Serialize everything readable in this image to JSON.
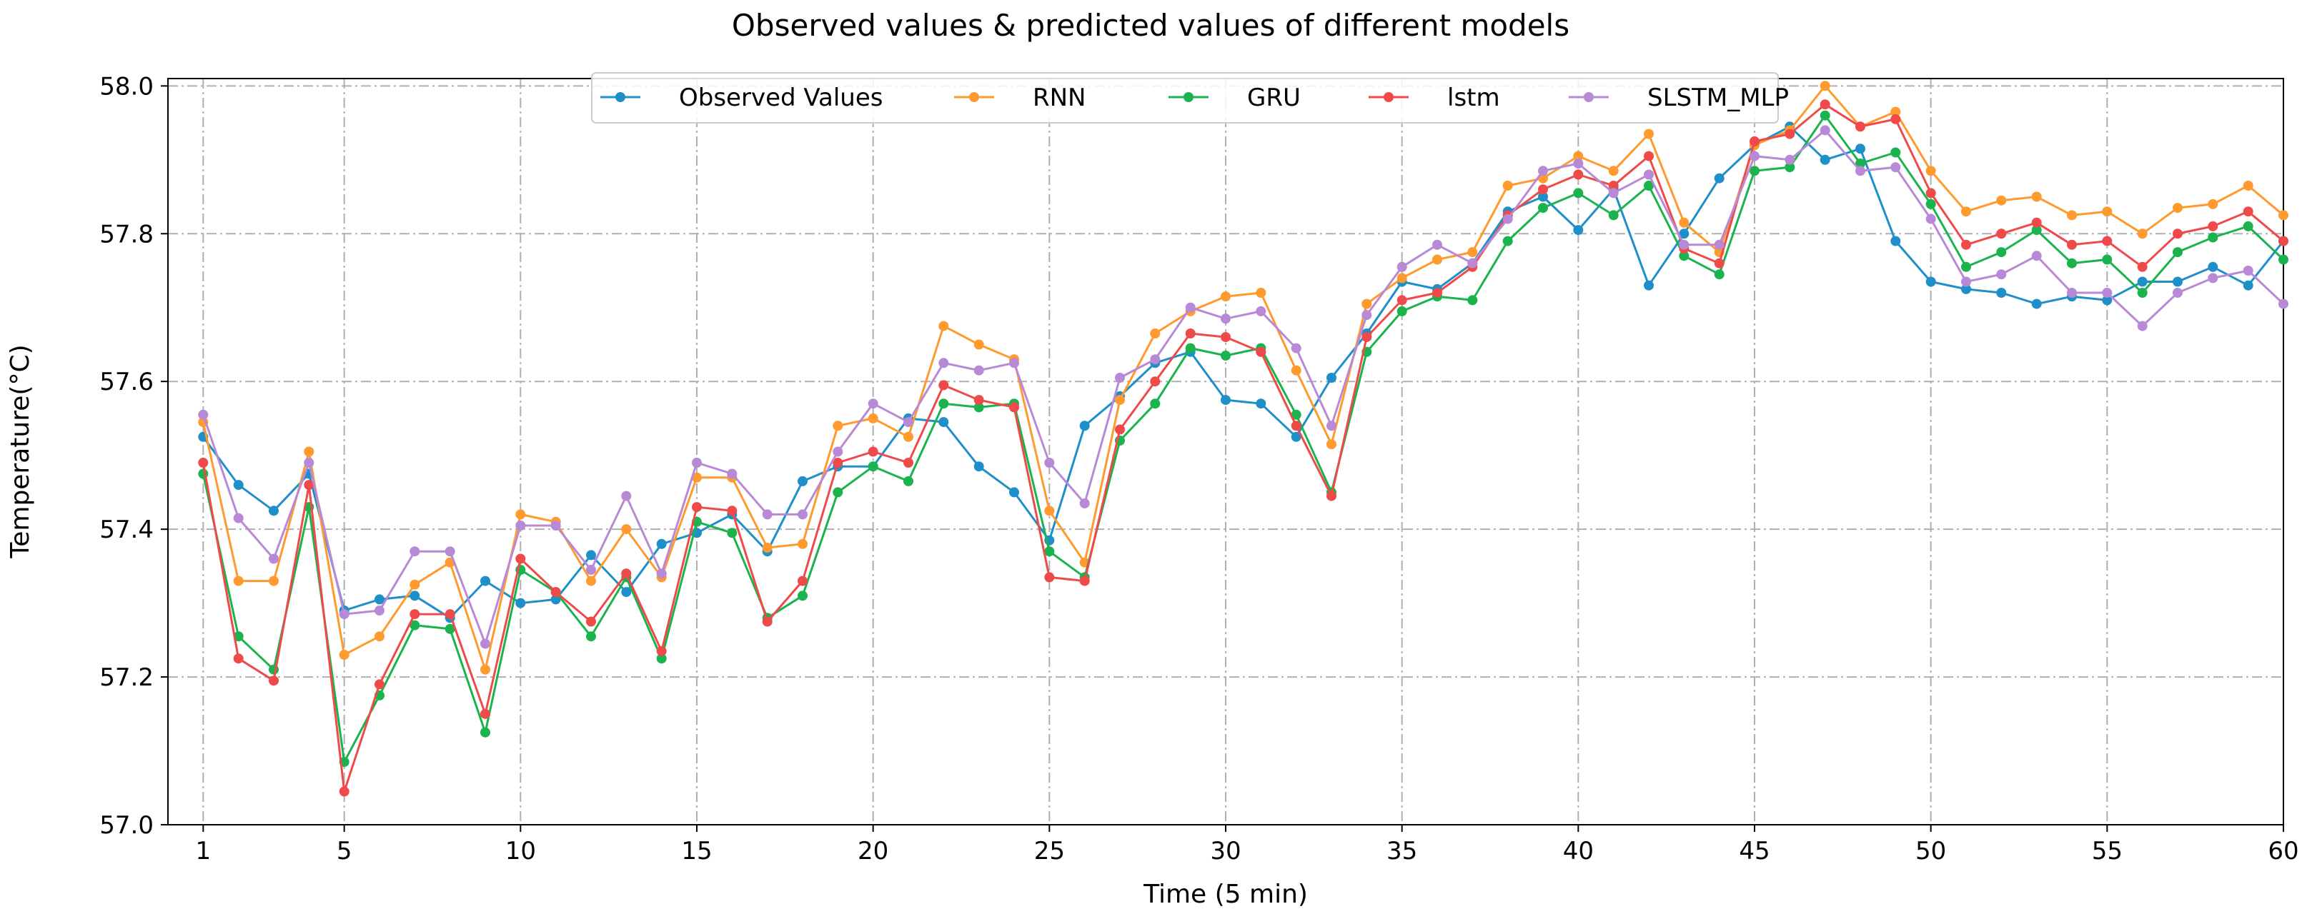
{
  "chart_data": {
    "type": "line",
    "title": "Observed values & predicted values of different models",
    "xlabel": "Time (5 min)",
    "ylabel": "Temperature(°C)",
    "xlim": [
      0,
      60
    ],
    "ylim": [
      57.0,
      58.01
    ],
    "xticks": [
      1,
      5,
      10,
      15,
      20,
      25,
      30,
      35,
      40,
      45,
      50,
      55,
      60
    ],
    "xtick_labels": [
      "1",
      "5",
      "10",
      "15",
      "20",
      "25",
      "30",
      "35",
      "40",
      "45",
      "50",
      "55",
      "60"
    ],
    "yticks": [
      57.0,
      57.2,
      57.4,
      57.6,
      57.8,
      58.0
    ],
    "ytick_labels": [
      "57.0",
      "57.2",
      "57.4",
      "57.6",
      "57.8",
      "58.0"
    ],
    "grid": true,
    "legend_position": "top-center",
    "x": [
      1,
      2,
      3,
      4,
      5,
      6,
      7,
      8,
      9,
      10,
      11,
      12,
      13,
      14,
      15,
      16,
      17,
      18,
      19,
      20,
      21,
      22,
      23,
      24,
      25,
      26,
      27,
      28,
      29,
      30,
      31,
      32,
      33,
      34,
      35,
      36,
      37,
      38,
      39,
      40,
      41,
      42,
      43,
      44,
      45,
      46,
      47,
      48,
      49,
      50,
      51,
      52,
      53,
      54,
      55,
      56,
      57,
      58,
      59,
      60
    ],
    "series": [
      {
        "name": "Observed Values",
        "color": "#1f8fc9",
        "values": [
          57.525,
          57.46,
          57.425,
          57.475,
          57.29,
          57.305,
          57.31,
          57.28,
          57.33,
          57.3,
          57.305,
          57.365,
          57.315,
          57.38,
          57.395,
          57.42,
          57.37,
          57.465,
          57.485,
          57.485,
          57.55,
          57.545,
          57.485,
          57.45,
          57.385,
          57.54,
          57.58,
          57.625,
          57.64,
          57.575,
          57.57,
          57.525,
          57.605,
          57.665,
          57.735,
          57.725,
          57.76,
          57.83,
          57.85,
          57.805,
          57.86,
          57.73,
          57.8,
          57.875,
          57.92,
          57.945,
          57.9,
          57.915,
          57.79,
          57.735,
          57.725,
          57.72,
          57.705,
          57.715,
          57.71,
          57.735,
          57.735,
          57.755,
          57.73,
          57.79
        ]
      },
      {
        "name": "RNN",
        "color": "#ff9a2e",
        "values": [
          57.545,
          57.33,
          57.33,
          57.505,
          57.23,
          57.255,
          57.325,
          57.355,
          57.21,
          57.42,
          57.41,
          57.33,
          57.4,
          57.335,
          57.47,
          57.47,
          57.375,
          57.38,
          57.54,
          57.55,
          57.525,
          57.675,
          57.65,
          57.63,
          57.425,
          57.355,
          57.575,
          57.665,
          57.695,
          57.715,
          57.72,
          57.615,
          57.515,
          57.705,
          57.74,
          57.765,
          57.775,
          57.865,
          57.875,
          57.905,
          57.885,
          57.935,
          57.815,
          57.775,
          57.92,
          57.94,
          58.0,
          57.945,
          57.965,
          57.885,
          57.83,
          57.845,
          57.85,
          57.825,
          57.83,
          57.8,
          57.835,
          57.84,
          57.865,
          57.825
        ]
      },
      {
        "name": "GRU",
        "color": "#1ab34d",
        "values": [
          57.475,
          57.255,
          57.21,
          57.43,
          57.085,
          57.175,
          57.27,
          57.265,
          57.125,
          57.345,
          57.315,
          57.255,
          57.335,
          57.225,
          57.41,
          57.395,
          57.28,
          57.31,
          57.45,
          57.485,
          57.465,
          57.57,
          57.565,
          57.57,
          57.37,
          57.335,
          57.52,
          57.57,
          57.645,
          57.635,
          57.645,
          57.555,
          57.45,
          57.64,
          57.695,
          57.715,
          57.71,
          57.79,
          57.835,
          57.855,
          57.825,
          57.865,
          57.77,
          57.745,
          57.885,
          57.89,
          57.96,
          57.895,
          57.91,
          57.84,
          57.755,
          57.775,
          57.805,
          57.76,
          57.765,
          57.72,
          57.775,
          57.795,
          57.81,
          57.765
        ]
      },
      {
        "name": "lstm",
        "color": "#ef4a4a",
        "values": [
          57.49,
          57.225,
          57.195,
          57.46,
          57.045,
          57.19,
          57.285,
          57.285,
          57.15,
          57.36,
          57.315,
          57.275,
          57.34,
          57.235,
          57.43,
          57.425,
          57.275,
          57.33,
          57.49,
          57.505,
          57.49,
          57.595,
          57.575,
          57.565,
          57.335,
          57.33,
          57.535,
          57.6,
          57.665,
          57.66,
          57.64,
          57.54,
          57.445,
          57.66,
          57.71,
          57.72,
          57.755,
          57.825,
          57.86,
          57.88,
          57.865,
          57.905,
          57.78,
          57.76,
          57.925,
          57.935,
          57.975,
          57.945,
          57.955,
          57.855,
          57.785,
          57.8,
          57.815,
          57.785,
          57.79,
          57.755,
          57.8,
          57.81,
          57.83,
          57.79
        ]
      },
      {
        "name": "SLSTM_MLP",
        "color": "#b889d6",
        "values": [
          57.555,
          57.415,
          57.36,
          57.49,
          57.285,
          57.29,
          57.37,
          57.37,
          57.245,
          57.405,
          57.405,
          57.345,
          57.445,
          57.34,
          57.49,
          57.475,
          57.42,
          57.42,
          57.505,
          57.57,
          57.545,
          57.625,
          57.615,
          57.625,
          57.49,
          57.435,
          57.605,
          57.63,
          57.7,
          57.685,
          57.695,
          57.645,
          57.54,
          57.69,
          57.755,
          57.785,
          57.76,
          57.82,
          57.885,
          57.895,
          57.855,
          57.88,
          57.785,
          57.785,
          57.905,
          57.9,
          57.94,
          57.885,
          57.89,
          57.82,
          57.735,
          57.745,
          57.77,
          57.72,
          57.72,
          57.675,
          57.72,
          57.74,
          57.75,
          57.705
        ]
      }
    ]
  }
}
